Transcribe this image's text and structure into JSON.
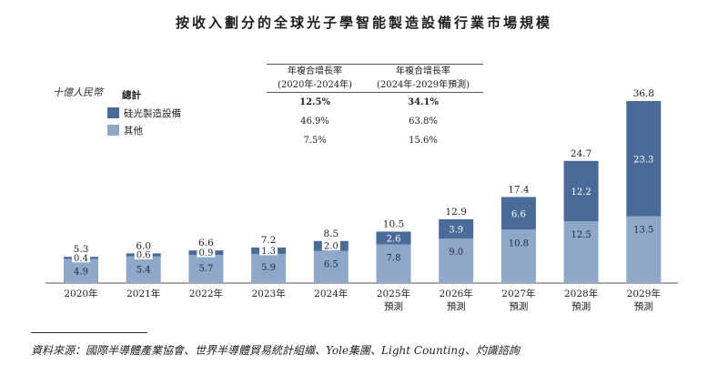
{
  "title": "按收入劃分的全球光子學智能製造設備行業市場規模",
  "unit_label": "十億人民幣",
  "source": "資料來源：國際半導體產業協會、世界半導體貿易統計組織、Yole集團、Light Counting、灼識諮詢",
  "cagr_table": {
    "headers": [
      {
        "line1": "年複合增長率",
        "line2": "(2020年-2024年)"
      },
      {
        "line1": "年複合增長率",
        "line2": "(2024年-2029年預測)"
      }
    ],
    "rows": [
      [
        "12.5%",
        "34.1%"
      ],
      [
        "46.9%",
        "63.8%"
      ],
      [
        "7.5%",
        "15.6%"
      ]
    ]
  },
  "chart_data": {
    "type": "bar",
    "stacked": true,
    "categories": [
      "2020年",
      "2021年",
      "2022年",
      "2023年",
      "2024年",
      "2025年預測",
      "2026年預測",
      "2027年預測",
      "2028年預測",
      "2029年預測"
    ],
    "category_lines": [
      [
        "2020年"
      ],
      [
        "2021年"
      ],
      [
        "2022年"
      ],
      [
        "2023年"
      ],
      [
        "2024年"
      ],
      [
        "2025年",
        "預測"
      ],
      [
        "2026年",
        "預測"
      ],
      [
        "2027年",
        "預測"
      ],
      [
        "2028年",
        "預測"
      ],
      [
        "2029年",
        "預測"
      ]
    ],
    "totals_label": "總計",
    "totals": [
      "5.3",
      "6.0",
      "6.6",
      "7.2",
      "8.5",
      "10.5",
      "12.9",
      "17.4",
      "24.7",
      "36.8"
    ],
    "series": [
      {
        "name": "其他",
        "color": "#8fa8c9",
        "values": [
          4.9,
          5.4,
          5.7,
          5.9,
          6.5,
          7.8,
          9.0,
          10.8,
          12.5,
          13.5
        ],
        "labels": [
          "4.9",
          "5.4",
          "5.7",
          "5.9",
          "6.5",
          "7.8",
          "9.0",
          "10.8",
          "12.5",
          "13.5"
        ]
      },
      {
        "name": "硅光製造設備",
        "color": "#4a6b98",
        "values": [
          0.4,
          0.6,
          0.9,
          1.3,
          2.0,
          2.6,
          3.9,
          6.6,
          12.2,
          23.3
        ],
        "labels": [
          "0.4",
          "0.6",
          "0.9",
          "1.3",
          "2.0",
          "2.6",
          "3.9",
          "6.6",
          "12.2",
          "23.3"
        ]
      }
    ],
    "ylim": [
      0,
      36.8
    ],
    "legend": "top-left",
    "grid": false
  }
}
